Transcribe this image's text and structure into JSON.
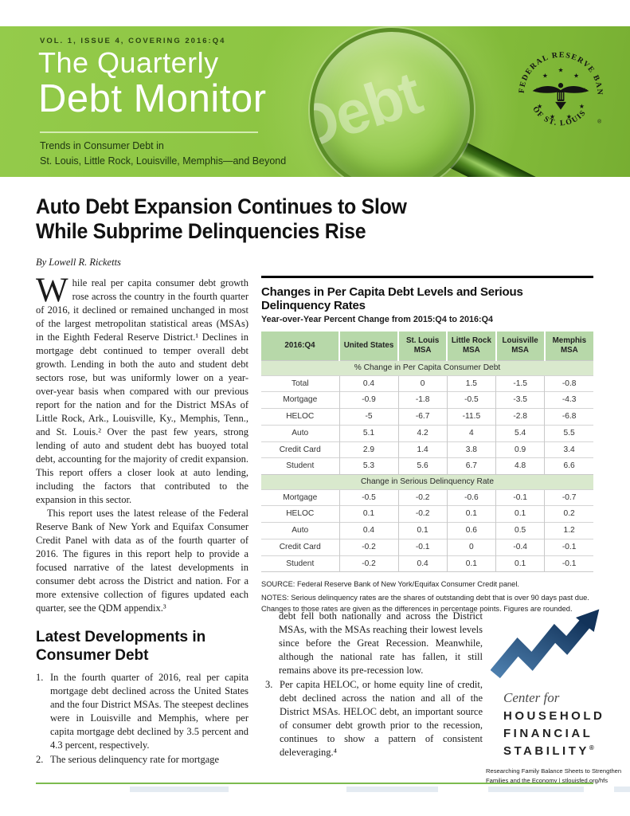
{
  "banner": {
    "issue_line": "VOL. 1, ISSUE 4, COVERING 2016:Q4",
    "title_line1": "The Quarterly",
    "title_line2": "Debt Monitor",
    "tagline_line1": "Trends in Consumer Debt in",
    "tagline_line2": "St. Louis, Little Rock, Louisville, Memphis—and Beyond",
    "watermark": "Debt",
    "seal_text_top": "FEDERAL RESERVE BANK",
    "seal_text_bottom": "OF ST. LOUIS",
    "seal_registered": "®",
    "colors": {
      "banner_green": "#8bc340",
      "lens_green": "#a5d363",
      "handle_green": "#3a6f17"
    }
  },
  "article": {
    "headline_line1": "Auto Debt Expansion Continues to Slow",
    "headline_line2": "While Subprime Delinquencies Rise",
    "byline": "By Lowell R. Ricketts",
    "dropcap": "W",
    "para1": "hile real per capita consumer debt growth rose across the country in the fourth quarter of 2016, it declined or remained unchanged in most of the largest metropolitan statistical areas (MSAs) in the Eighth Federal Reserve District.¹ Declines in mortgage debt continued to temper overall debt growth. Lending in both the auto and student debt sectors rose, but was uniformly lower on a year-over-year basis when compared with our previous report for the nation and for the District MSAs of Little Rock, Ark., Louisville, Ky., Memphis, Tenn., and St. Louis.² Over the past few years, strong lending of auto and student debt has buoyed total debt, accounting for the majority of credit expansion. This report offers a closer look at auto lending, including the factors that contributed to the expansion in this sector.",
    "para2": "This report uses the latest release of the Federal Reserve Bank of New York and Equifax Consumer Credit Panel with data as of the fourth quarter of 2016. The figures in this report help to provide a focused narrative of the latest developments in consumer debt across the District and nation. For a more extensive collection of figures updated each quarter, see the QDM appendix.³",
    "section_heading": "Latest Developments in Consumer Debt",
    "list": [
      {
        "num": "1.",
        "text": "In the fourth quarter of 2016, real per capita mortgage debt declined across the United States and the four District MSAs. The steepest declines were in Louisville and Memphis, where per capita mortgage debt declined by 3.5 percent and 4.3 percent, respectively."
      },
      {
        "num": "2.",
        "text": "The serious delinquency rate for mortgage"
      }
    ],
    "list_continuation": "debt fell both nationally and across the District MSAs, with the MSAs reaching their lowest levels since before the Great Recession. Meanwhile, although the national rate has fallen, it still remains above its pre-recession low.",
    "list2": [
      {
        "num": "3.",
        "text": "Per capita HELOC, or home equity line of credit, debt declined across the nation and all of the District MSAs. HELOC debt, an important source of consumer debt growth prior to the recession, continues to show a pattern of consistent deleveraging.⁴"
      }
    ]
  },
  "table": {
    "title": "Changes in Per Capita Debt Levels and Serious Delinquency Rates",
    "subtitle": "Year-over-Year Percent Change from 2015:Q4 to 2016:Q4",
    "columns": [
      "2016:Q4",
      "United States",
      "St. Louis MSA",
      "Little Rock MSA",
      "Louisville MSA",
      "Memphis MSA"
    ],
    "sections": [
      {
        "header": "% Change in Per Capita Consumer Debt",
        "rows": [
          [
            "Total",
            "0.4",
            "0",
            "1.5",
            "-1.5",
            "-0.8"
          ],
          [
            "Mortgage",
            "-0.9",
            "-1.8",
            "-0.5",
            "-3.5",
            "-4.3"
          ],
          [
            "HELOC",
            "-5",
            "-6.7",
            "-11.5",
            "-2.8",
            "-6.8"
          ],
          [
            "Auto",
            "5.1",
            "4.2",
            "4",
            "5.4",
            "5.5"
          ],
          [
            "Credit Card",
            "2.9",
            "1.4",
            "3.8",
            "0.9",
            "3.4"
          ],
          [
            "Student",
            "5.3",
            "5.6",
            "6.7",
            "4.8",
            "6.6"
          ]
        ]
      },
      {
        "header": "Change in Serious Delinquency Rate",
        "rows": [
          [
            "Mortgage",
            "-0.5",
            "-0.2",
            "-0.6",
            "-0.1",
            "-0.7"
          ],
          [
            "HELOC",
            "0.1",
            "-0.2",
            "0.1",
            "0.1",
            "0.2"
          ],
          [
            "Auto",
            "0.4",
            "0.1",
            "0.6",
            "0.5",
            "1.2"
          ],
          [
            "Credit Card",
            "-0.2",
            "-0.1",
            "0",
            "-0.4",
            "-0.1"
          ],
          [
            "Student",
            "-0.2",
            "0.4",
            "0.1",
            "0.1",
            "-0.1"
          ]
        ]
      }
    ],
    "source": "SOURCE: Federal Reserve Bank of New York/Equifax Consumer Credit panel.",
    "notes": "NOTES: Serious delinquency rates are the shares of outstanding debt that is over 90 days past due. Changes to those rates are given as the differences in percentage points. Figures are rounded.",
    "colors": {
      "header_green": "#b7d8a9",
      "section_green": "#d9e9cd"
    }
  },
  "logo": {
    "center_for": "Center for",
    "line1": "HOUSEHOLD",
    "line2": "FINANCIAL",
    "line3": "STABILITY",
    "registered": "®",
    "tagline_line1": "Researching Family Balance Sheets to Strengthen",
    "tagline_line2": "Families and the Economy   |   stlouisfed.org/hfs",
    "colors": {
      "navy": "#17375c",
      "steel_blue": "#4d7fae"
    }
  }
}
